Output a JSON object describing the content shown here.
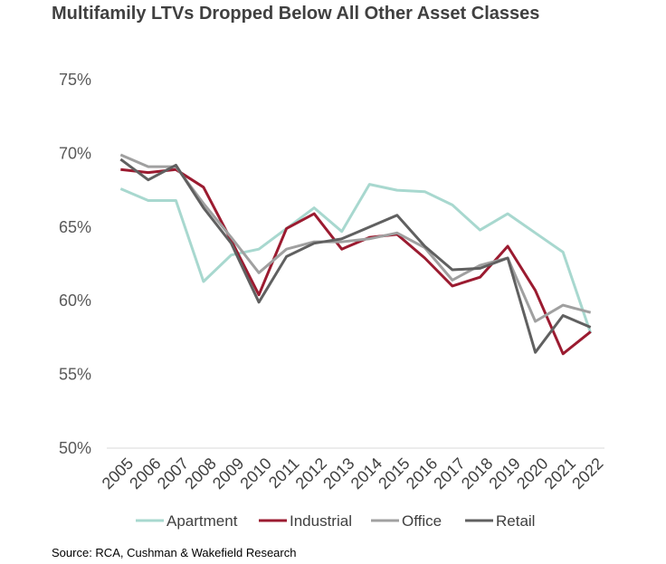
{
  "chart_data": {
    "type": "line",
    "title": "Multifamily LTVs Dropped Below All Other Asset Classes",
    "source": "Source: RCA, Cushman & Wakefield Research",
    "x": [
      "2005",
      "2006",
      "2007",
      "2008",
      "2009",
      "2010",
      "2011",
      "2012",
      "2013",
      "2014",
      "2015",
      "2016",
      "2017",
      "2018",
      "2019",
      "2020",
      "2021",
      "2022"
    ],
    "y_ticks": [
      "50%",
      "55%",
      "60%",
      "65%",
      "70%",
      "75%"
    ],
    "ylim": [
      50,
      75
    ],
    "grid": false,
    "legend_position": "bottom",
    "series": [
      {
        "name": "Apartment",
        "color": "#a8d8cf",
        "values": [
          67.6,
          66.8,
          66.8,
          61.3,
          63.1,
          63.5,
          64.9,
          66.3,
          64.7,
          67.9,
          67.5,
          67.4,
          66.5,
          64.8,
          65.9,
          64.6,
          63.3,
          57.8
        ]
      },
      {
        "name": "Industrial",
        "color": "#9b1b30",
        "values": [
          68.9,
          68.7,
          68.9,
          67.7,
          64.1,
          60.4,
          64.9,
          65.9,
          63.5,
          64.3,
          64.5,
          62.9,
          61.0,
          61.6,
          63.7,
          60.7,
          56.4,
          57.9
        ]
      },
      {
        "name": "Office",
        "color": "#a0a0a0",
        "values": [
          69.9,
          69.1,
          69.1,
          66.6,
          64.3,
          61.9,
          63.5,
          64.0,
          64.0,
          64.2,
          64.6,
          63.6,
          61.4,
          62.4,
          62.9,
          58.6,
          59.7,
          59.2
        ]
      },
      {
        "name": "Retail",
        "color": "#606060",
        "values": [
          69.6,
          68.2,
          69.2,
          66.3,
          63.9,
          59.9,
          63.0,
          63.9,
          64.2,
          65.0,
          65.8,
          63.7,
          62.1,
          62.2,
          62.9,
          56.5,
          59.0,
          58.2
        ]
      }
    ]
  }
}
